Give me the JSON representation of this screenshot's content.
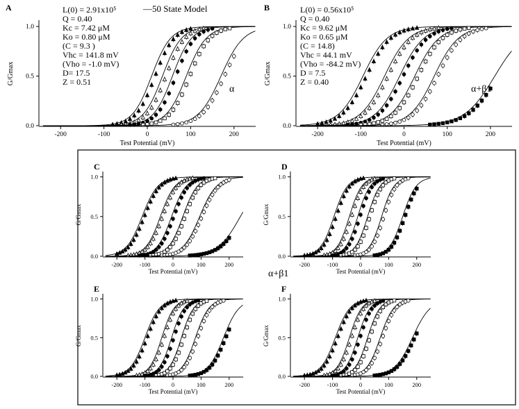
{
  "figure": {
    "legend": "—50 State Model",
    "center_label": "α+β1",
    "tick_font": 9,
    "label_font": 10
  },
  "chart_data": [
    {
      "id": "A",
      "type": "line",
      "panel_label": "A",
      "xlabel": "Test Potential (mV)",
      "ylabel": "G/Gmax",
      "xlim": [
        -250,
        250
      ],
      "ylim": [
        0,
        1.05
      ],
      "xticks": [
        -200,
        -100,
        0,
        100,
        200
      ],
      "yticks": [
        0.0,
        0.5,
        1.0
      ],
      "tag": "α",
      "params": [
        "L(0) = 2.91x10⁵",
        "Q = 0.40",
        "Kc = 7.42 μM",
        "Ko =  0.80 μM",
        "(C = 9.3 )",
        "Vhc = 141.8 mV",
        "(Vho = -1.0 mV)",
        "D= 17.5",
        "Z = 0.51"
      ],
      "series": [
        {
          "name": "curve1",
          "v_half": 10,
          "slope": 22
        },
        {
          "name": "curve2",
          "v_half": 35,
          "slope": 22
        },
        {
          "name": "curve3",
          "v_half": 58,
          "slope": 22
        },
        {
          "name": "curve4",
          "v_half": 90,
          "slope": 23
        },
        {
          "name": "curve5",
          "v_half": 170,
          "slope": 26
        }
      ]
    },
    {
      "id": "B",
      "type": "line",
      "panel_label": "B",
      "xlabel": "Test Potential (mV)",
      "ylabel": "G/Gmax",
      "xlim": [
        -250,
        250
      ],
      "ylim": [
        0,
        1.05
      ],
      "xticks": [
        -200,
        -100,
        0,
        100,
        200
      ],
      "yticks": [
        0.0,
        0.5,
        1.0
      ],
      "tag": "α+β1",
      "params": [
        "L(0) = 0.56x10⁵",
        "Q = 0.40",
        "Kc = 9.62 μM",
        "Ko = 0.65 μM",
        "(C = 14.8)",
        "Vhc = 44.1 mV",
        "(Vho = -84.2 mV)",
        "D = 7.5",
        "Z = 0.40"
      ],
      "series": [
        {
          "name": "curve1",
          "v_half": -95,
          "slope": 28
        },
        {
          "name": "curve2",
          "v_half": -45,
          "slope": 28
        },
        {
          "name": "curve3",
          "v_half": -10,
          "slope": 28
        },
        {
          "name": "curve4",
          "v_half": 25,
          "slope": 28
        },
        {
          "name": "curve5",
          "v_half": 70,
          "slope": 28
        },
        {
          "name": "curve6",
          "v_half": 210,
          "slope": 35
        }
      ]
    },
    {
      "id": "C",
      "type": "line",
      "panel_label": "C",
      "xlabel": "Test Potential (mV)",
      "ylabel": "G/Gmax",
      "xlim": [
        -250,
        250
      ],
      "ylim": [
        0,
        1.05
      ],
      "xticks": [
        -200,
        -100,
        0,
        100,
        200
      ],
      "yticks": [
        0.0,
        0.5,
        1.0
      ],
      "series": [
        {
          "name": "curve1",
          "v_half": -110,
          "slope": 28
        },
        {
          "name": "curve2",
          "v_half": -45,
          "slope": 26
        },
        {
          "name": "curve3",
          "v_half": -5,
          "slope": 26
        },
        {
          "name": "curve4",
          "v_half": 35,
          "slope": 26
        },
        {
          "name": "curve5",
          "v_half": 95,
          "slope": 30
        },
        {
          "name": "curve6",
          "v_half": 240,
          "slope": 40
        }
      ]
    },
    {
      "id": "D",
      "type": "line",
      "panel_label": "D",
      "xlabel": "Test Potential (mV)",
      "ylabel": "G/Gmax",
      "xlim": [
        -250,
        250
      ],
      "ylim": [
        0,
        1.05
      ],
      "xticks": [
        -200,
        -100,
        0,
        100,
        200
      ],
      "yticks": [
        0.0,
        0.5,
        1.0
      ],
      "series": [
        {
          "name": "curve1",
          "v_half": -95,
          "slope": 24
        },
        {
          "name": "curve2",
          "v_half": -40,
          "slope": 22
        },
        {
          "name": "curve3",
          "v_half": -10,
          "slope": 22
        },
        {
          "name": "curve4",
          "v_half": 25,
          "slope": 22
        },
        {
          "name": "curve5",
          "v_half": 75,
          "slope": 22
        },
        {
          "name": "curve6",
          "v_half": 150,
          "slope": 24
        }
      ]
    },
    {
      "id": "E",
      "type": "line",
      "panel_label": "E",
      "xlabel": "Test Potential (mV)",
      "ylabel": "G/Gmax",
      "xlim": [
        -250,
        250
      ],
      "ylim": [
        0,
        1.05
      ],
      "xticks": [
        -200,
        -100,
        0,
        100,
        200
      ],
      "yticks": [
        0.0,
        0.5,
        1.0
      ],
      "series": [
        {
          "name": "curve1",
          "v_half": -100,
          "slope": 26
        },
        {
          "name": "curve2",
          "v_half": -40,
          "slope": 22
        },
        {
          "name": "curve3",
          "v_half": -5,
          "slope": 22
        },
        {
          "name": "curve4",
          "v_half": 30,
          "slope": 22
        },
        {
          "name": "curve5",
          "v_half": 80,
          "slope": 24
        },
        {
          "name": "curve6",
          "v_half": 180,
          "slope": 28
        }
      ]
    },
    {
      "id": "F",
      "type": "line",
      "panel_label": "F",
      "xlabel": "Test Potential (mV)",
      "ylabel": "G/Gmax",
      "xlim": [
        -250,
        250
      ],
      "ylim": [
        0,
        1.05
      ],
      "xticks": [
        -200,
        -100,
        0,
        100,
        200
      ],
      "yticks": [
        0.0,
        0.5,
        1.0
      ],
      "series": [
        {
          "name": "curve1",
          "v_half": -90,
          "slope": 26
        },
        {
          "name": "curve2",
          "v_half": -40,
          "slope": 22
        },
        {
          "name": "curve3",
          "v_half": -10,
          "slope": 22
        },
        {
          "name": "curve4",
          "v_half": 25,
          "slope": 22
        },
        {
          "name": "curve5",
          "v_half": 70,
          "slope": 24
        },
        {
          "name": "curve6",
          "v_half": 185,
          "slope": 32
        }
      ]
    }
  ]
}
